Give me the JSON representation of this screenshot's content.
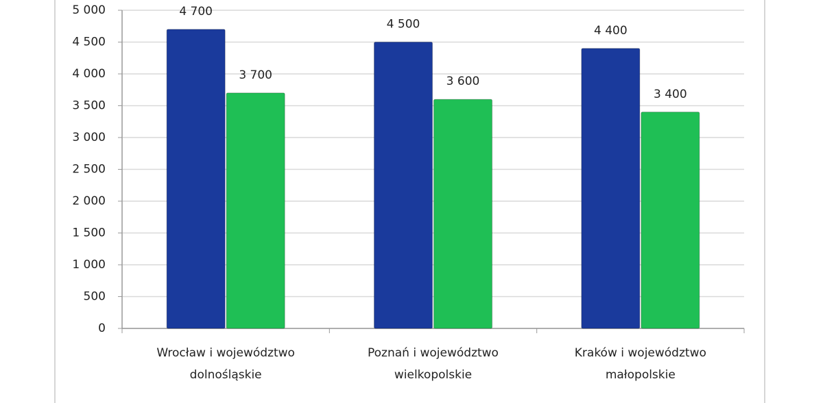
{
  "chart_data": {
    "type": "bar",
    "categories": [
      "Wrocław i województwo dolnośląskie",
      "Poznań i województwo wielkopolskie",
      "Kraków i województwo małopolskie"
    ],
    "series": [
      {
        "color": "#1a3a9c",
        "values": [
          4700,
          4500,
          4400
        ],
        "value_labels": [
          "4 700",
          "4 500",
          "4 400"
        ]
      },
      {
        "color": "#1fbf55",
        "values": [
          3700,
          3600,
          3400
        ],
        "value_labels": [
          "3 700",
          "3 600",
          "3 400"
        ]
      }
    ],
    "ylim": [
      0,
      5000
    ],
    "yticks": [
      0,
      500,
      {
        "value": 1000,
        "label": "1 000"
      },
      {
        "value": 1500,
        "label": "1 500"
      },
      {
        "value": 2000,
        "label": "2 000"
      },
      {
        "value": 2500,
        "label": "2 500"
      },
      {
        "value": 3000,
        "label": "3 000"
      },
      {
        "value": 3500,
        "label": "3 500"
      },
      {
        "value": 4000,
        "label": "4 000"
      },
      {
        "value": 4500,
        "label": "4 500"
      },
      {
        "value": 5000,
        "label": "5 000"
      }
    ],
    "grid": true
  }
}
